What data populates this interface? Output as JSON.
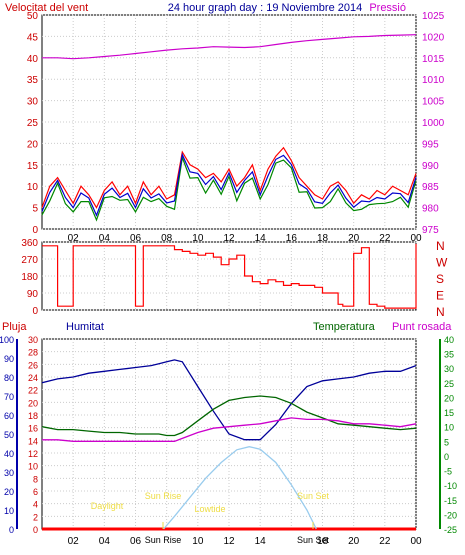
{
  "header": {
    "wind_label": "Velocitat del vent",
    "title": "24 hour graph day : 19 Noviembre 2014",
    "pressure_label": "Pressió"
  },
  "colors": {
    "wind": "#ff0000",
    "avg_wind": "#0000cc",
    "gust_min": "#008800",
    "pressure": "#cc00cc",
    "humidity": "#000099",
    "temperature": "#006600",
    "dewpoint": "#cc00cc",
    "rain": "#ff0000",
    "solar": "#99ccee",
    "event_text": "#eedd44",
    "axis_left_text": "#cc0000",
    "axis_right_text": "#cc00cc",
    "axis_hum_text": "#0000aa",
    "axis_temp_text": "#008800"
  },
  "x_ticks": [
    "02",
    "04",
    "06",
    "08",
    "10",
    "12",
    "14",
    "16",
    "18",
    "20",
    "22",
    "00"
  ],
  "panel1": {
    "wind_ticks": [
      "0",
      "5",
      "10",
      "15",
      "20",
      "25",
      "30",
      "35",
      "40",
      "45",
      "50"
    ],
    "pressure_ticks": [
      "975",
      "980",
      "985",
      "990",
      "995",
      "1000",
      "1005",
      "1010",
      "1015",
      "1020",
      "1025"
    ]
  },
  "panel2": {
    "dir_ticks": [
      "0",
      "90",
      "180",
      "270",
      "360"
    ],
    "dir_letters": [
      "N",
      "W",
      "S",
      "E",
      "N"
    ]
  },
  "panel3": {
    "labels": {
      "rain": "Pluja",
      "humidity": "Humitat",
      "temperature": "Temperatura",
      "dewpoint": "Punt rosada"
    },
    "humidity_ticks": [
      "0",
      "10",
      "20",
      "30",
      "40",
      "50",
      "60",
      "70",
      "80",
      "90",
      "100"
    ],
    "rain_ticks": [
      "0",
      "2",
      "4",
      "6",
      "8",
      "10",
      "12",
      "14",
      "16",
      "18",
      "20",
      "22",
      "24",
      "26",
      "28",
      "30"
    ],
    "temp_ticks": [
      "-25",
      "-20",
      "-15",
      "-10",
      "-5",
      "0",
      "5",
      "10",
      "15",
      "20",
      "25",
      "30",
      "35",
      "40"
    ],
    "events": {
      "daylight": "Daylight",
      "sunrise": "Sun Rise",
      "lowtide": "Lowtide",
      "sunset": "Sun Set",
      "sunrise_axis": "Sun Rise",
      "sunset_axis": "Sun Set"
    }
  },
  "chart_data": [
    {
      "type": "line",
      "title": "24 hour graph day : 19 Noviembre 2014",
      "x_unit": "hour",
      "series": [
        {
          "name": "Velocitat del vent",
          "axis": "left",
          "ylim": [
            0,
            50
          ],
          "x": [
            0,
            0.5,
            1,
            1.5,
            2,
            2.5,
            3,
            3.5,
            4,
            4.5,
            5,
            5.5,
            6,
            6.5,
            7,
            7.5,
            8,
            8.5,
            9,
            9.5,
            10,
            10.5,
            11,
            11.5,
            12,
            12.5,
            13,
            13.5,
            14,
            14.5,
            15,
            15.5,
            16,
            16.5,
            17,
            17.5,
            18,
            18.5,
            19,
            19.5,
            20,
            20.5,
            21,
            21.5,
            22,
            22.5,
            23,
            23.5,
            24
          ],
          "values": [
            5,
            10,
            12,
            9,
            6,
            10,
            8,
            5,
            9,
            11,
            8,
            10,
            6,
            11,
            8,
            10,
            7,
            8,
            18,
            15,
            14,
            12,
            13,
            11,
            14,
            10,
            12,
            15,
            9,
            14,
            17,
            19,
            16,
            12,
            10,
            8,
            7,
            10,
            11,
            9,
            6,
            8,
            7,
            9,
            8,
            10,
            9,
            8,
            13
          ]
        },
        {
          "name": "Pressió",
          "axis": "right",
          "ylim": [
            975,
            1025
          ],
          "x": [
            0,
            1,
            2,
            3,
            4,
            5,
            6,
            7,
            8,
            9,
            10,
            11,
            12,
            13,
            14,
            15,
            16,
            17,
            18,
            19,
            20,
            21,
            22,
            23,
            24
          ],
          "values": [
            1015,
            1015,
            1014.8,
            1015,
            1015.3,
            1015.6,
            1016,
            1016.4,
            1016.8,
            1017.1,
            1017.3,
            1017.6,
            1017.5,
            1017.4,
            1017.6,
            1018.1,
            1018.6,
            1019,
            1019.3,
            1019.6,
            1019.9,
            1020,
            1020.2,
            1020.3,
            1020.4
          ]
        }
      ]
    },
    {
      "type": "line",
      "title": "",
      "x_unit": "hour",
      "ylim": [
        0,
        360
      ],
      "series": [
        {
          "name": "Direcció",
          "x": [
            0,
            0.8,
            1,
            1.6,
            2,
            2.6,
            3,
            3.5,
            4,
            4.5,
            5,
            5.6,
            6,
            6.5,
            7,
            7.5,
            8,
            8.5,
            9,
            9.5,
            10,
            10.5,
            11,
            11.5,
            12,
            12.5,
            13,
            13.5,
            14,
            14.5,
            15,
            15.5,
            16,
            16.5,
            17,
            17.5,
            18,
            19,
            19.3,
            20,
            20.5,
            21,
            21.5,
            22,
            22.5,
            23,
            23.5,
            24
          ],
          "values": [
            340,
            340,
            20,
            20,
            340,
            340,
            340,
            340,
            340,
            340,
            340,
            340,
            20,
            340,
            340,
            340,
            340,
            320,
            310,
            300,
            290,
            300,
            280,
            240,
            270,
            290,
            180,
            150,
            140,
            160,
            150,
            130,
            140,
            130,
            130,
            120,
            90,
            30,
            20,
            300,
            330,
            30,
            20,
            10,
            10,
            10,
            10,
            350
          ]
        }
      ]
    },
    {
      "type": "line",
      "title": "",
      "x_unit": "hour",
      "series": [
        {
          "name": "Humitat",
          "axis": "humidity",
          "ylim": [
            0,
            100
          ],
          "x": [
            0,
            1,
            2,
            3,
            4,
            5,
            6,
            7,
            7.5,
            8,
            8.5,
            9,
            10,
            11,
            12,
            13,
            14,
            15,
            16,
            17,
            18,
            19,
            20,
            21,
            22,
            23,
            24
          ],
          "values": [
            77,
            79,
            80,
            82,
            83,
            84,
            85,
            86,
            87,
            88,
            89,
            88,
            75,
            62,
            50,
            47,
            47,
            55,
            66,
            75,
            78,
            79,
            80,
            82,
            83,
            83,
            86
          ]
        },
        {
          "name": "Temperatura",
          "axis": "temperature",
          "ylim": [
            -25,
            40
          ],
          "x": [
            0,
            1,
            2,
            3,
            4,
            5,
            6,
            7,
            7.5,
            8,
            8.5,
            9,
            10,
            11,
            12,
            13,
            14,
            15,
            16,
            17,
            18,
            19,
            20,
            21,
            22,
            23,
            24
          ],
          "values": [
            10,
            9,
            9,
            8.5,
            8,
            8,
            7.5,
            7.5,
            7.5,
            7,
            7,
            8,
            12,
            16,
            19,
            20,
            20.5,
            20,
            18,
            15,
            13,
            11,
            10.5,
            10,
            9.5,
            9,
            9.5
          ]
        },
        {
          "name": "Punt rosada",
          "axis": "temperature",
          "ylim": [
            -25,
            40
          ],
          "x": [
            0,
            1,
            2,
            3,
            4,
            5,
            6,
            7,
            7.5,
            8,
            8.5,
            9,
            10,
            11,
            12,
            13,
            14,
            15,
            16,
            17,
            18,
            19,
            20,
            21,
            22,
            23,
            24
          ],
          "values": [
            5.5,
            5.5,
            5,
            5,
            5,
            5,
            5,
            5,
            5,
            5,
            5,
            6,
            8,
            9.5,
            10,
            10.5,
            11,
            12,
            13,
            12.5,
            12.5,
            12,
            11,
            11,
            10.5,
            10,
            11
          ]
        },
        {
          "name": "Pluja",
          "axis": "rain",
          "ylim": [
            0,
            30
          ],
          "x": [
            0,
            24
          ],
          "values": [
            0,
            0
          ]
        },
        {
          "name": "Solar",
          "axis": "rain",
          "ylim": [
            0,
            30
          ],
          "x": [
            7.8,
            8.5,
            9.5,
            10.5,
            11.5,
            12.5,
            13.3,
            14,
            15,
            16,
            17,
            17.6
          ],
          "values": [
            0,
            2,
            5,
            8,
            10.5,
            12.5,
            13,
            12.6,
            10.5,
            7,
            3,
            0
          ]
        }
      ]
    }
  ]
}
